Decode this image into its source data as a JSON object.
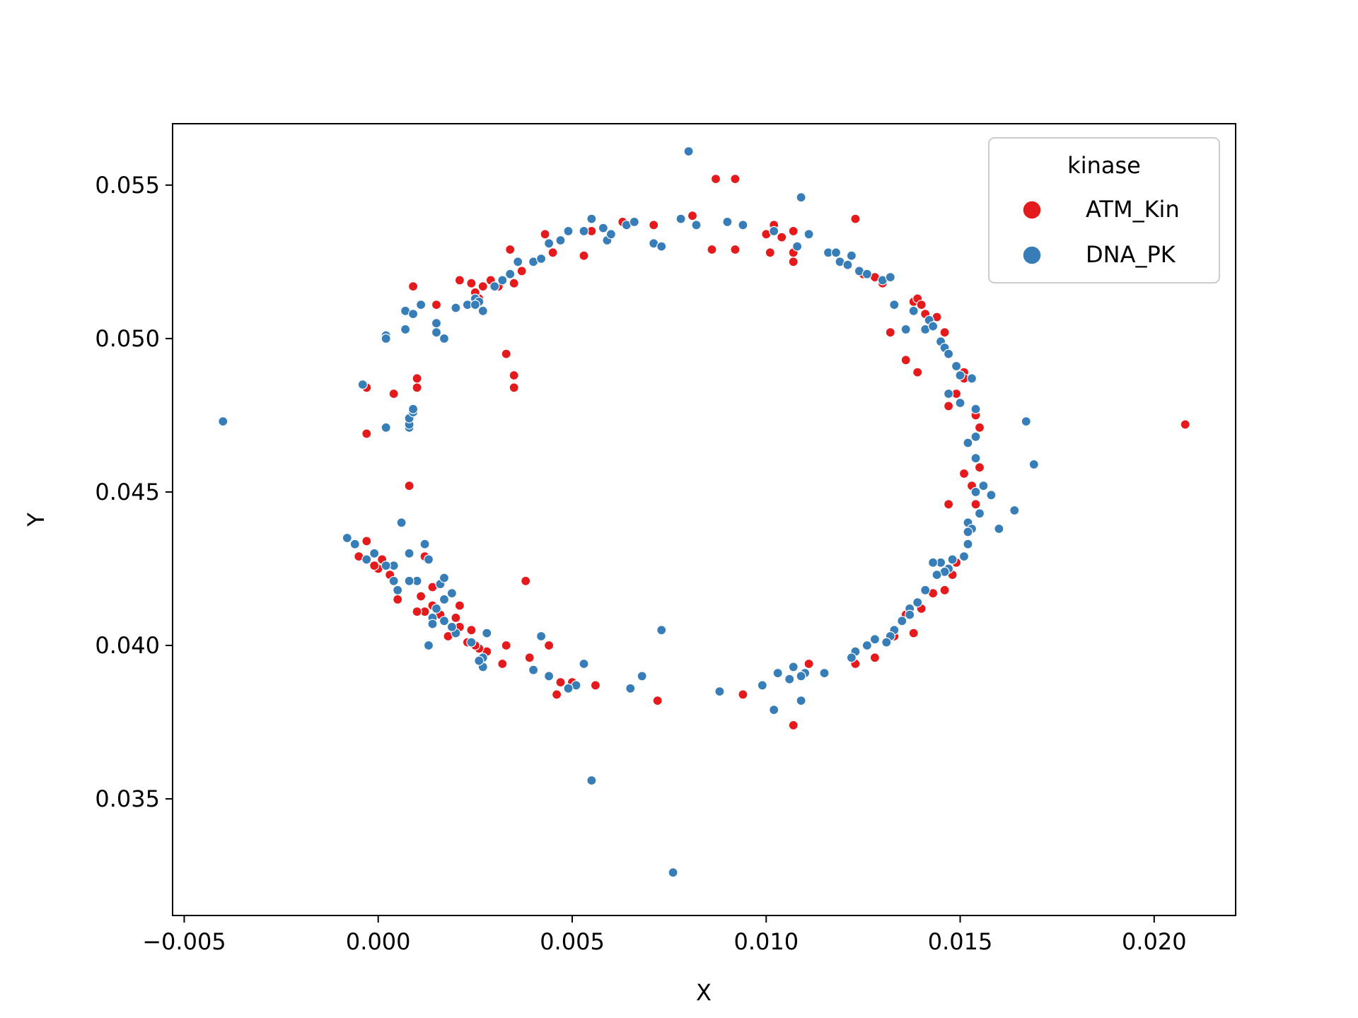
{
  "chart_data": {
    "type": "scatter",
    "title": "",
    "xlabel": "X",
    "ylabel": "Y",
    "xlim": [
      -0.0053,
      0.0221
    ],
    "ylim": [
      0.0312,
      0.057
    ],
    "xticks": [
      "−0.005",
      "0.000",
      "0.005",
      "0.010",
      "0.015",
      "0.020"
    ],
    "xtick_values": [
      -0.005,
      0.0,
      0.005,
      0.01,
      0.015,
      0.02
    ],
    "yticks": [
      "0.035",
      "0.040",
      "0.045",
      "0.050",
      "0.055"
    ],
    "ytick_values": [
      0.035,
      0.04,
      0.045,
      0.05,
      0.055
    ],
    "grid": false,
    "legend": {
      "title": "kinase",
      "placement": "top-right"
    },
    "series": [
      {
        "name": "ATM_Kin",
        "color": "#e41a1c",
        "points": [
          [
            -0.0003,
            0.0484
          ],
          [
            -0.0003,
            0.0469
          ],
          [
            0.0004,
            0.0482
          ],
          [
            0.0009,
            0.0517
          ],
          [
            0.001,
            0.0487
          ],
          [
            0.001,
            0.0484
          ],
          [
            0.0008,
            0.0452
          ],
          [
            0.0015,
            0.0511
          ],
          [
            0.0021,
            0.0519
          ],
          [
            0.0024,
            0.0518
          ],
          [
            0.0027,
            0.0517
          ],
          [
            0.0029,
            0.0519
          ],
          [
            0.0031,
            0.0517
          ],
          [
            0.0032,
            0.0519
          ],
          [
            0.0026,
            0.0513
          ],
          [
            0.0025,
            0.0515
          ],
          [
            0.0035,
            0.0518
          ],
          [
            0.0034,
            0.0529
          ],
          [
            0.0037,
            0.0522
          ],
          [
            0.0043,
            0.0534
          ],
          [
            0.0045,
            0.0528
          ],
          [
            0.0053,
            0.0527
          ],
          [
            0.0055,
            0.0535
          ],
          [
            0.0063,
            0.0538
          ],
          [
            0.0071,
            0.0537
          ],
          [
            0.0081,
            0.054
          ],
          [
            0.0087,
            0.0552
          ],
          [
            0.0092,
            0.0552
          ],
          [
            0.0086,
            0.0529
          ],
          [
            0.0092,
            0.0529
          ],
          [
            0.01,
            0.0534
          ],
          [
            0.0102,
            0.0537
          ],
          [
            0.0104,
            0.0533
          ],
          [
            0.0107,
            0.0535
          ],
          [
            0.0107,
            0.0528
          ],
          [
            0.0101,
            0.0528
          ],
          [
            0.0107,
            0.0525
          ],
          [
            0.0123,
            0.0539
          ],
          [
            0.0125,
            0.0521
          ],
          [
            0.0128,
            0.052
          ],
          [
            0.013,
            0.0518
          ],
          [
            0.0132,
            0.0502
          ],
          [
            0.0138,
            0.0512
          ],
          [
            0.0139,
            0.0513
          ],
          [
            0.014,
            0.0511
          ],
          [
            0.0141,
            0.0508
          ],
          [
            0.0144,
            0.0507
          ],
          [
            0.0146,
            0.0502
          ],
          [
            0.0136,
            0.0493
          ],
          [
            0.0139,
            0.0489
          ],
          [
            0.0147,
            0.0478
          ],
          [
            0.0149,
            0.0482
          ],
          [
            0.0151,
            0.0489
          ],
          [
            0.0151,
            0.0487
          ],
          [
            0.0154,
            0.0475
          ],
          [
            0.0155,
            0.0471
          ],
          [
            0.0151,
            0.0456
          ],
          [
            0.0153,
            0.0452
          ],
          [
            0.0155,
            0.0458
          ],
          [
            0.0154,
            0.0446
          ],
          [
            0.0147,
            0.0446
          ],
          [
            0.0149,
            0.0427
          ],
          [
            0.0148,
            0.0423
          ],
          [
            0.0146,
            0.0418
          ],
          [
            0.0143,
            0.0417
          ],
          [
            0.014,
            0.0412
          ],
          [
            0.0136,
            0.041
          ],
          [
            0.0138,
            0.0404
          ],
          [
            0.0133,
            0.0403
          ],
          [
            0.0128,
            0.0396
          ],
          [
            0.0123,
            0.0394
          ],
          [
            0.0111,
            0.0394
          ],
          [
            0.0107,
            0.0374
          ],
          [
            0.0094,
            0.0384
          ],
          [
            0.0072,
            0.0382
          ],
          [
            0.0056,
            0.0387
          ],
          [
            0.005,
            0.0388
          ],
          [
            0.0046,
            0.0384
          ],
          [
            0.0047,
            0.0388
          ],
          [
            0.0044,
            0.04
          ],
          [
            0.0039,
            0.0396
          ],
          [
            0.0038,
            0.0421
          ],
          [
            0.0032,
            0.0394
          ],
          [
            0.0033,
            0.04
          ],
          [
            0.0028,
            0.0398
          ],
          [
            0.0026,
            0.0399
          ],
          [
            0.0025,
            0.04
          ],
          [
            0.0023,
            0.0401
          ],
          [
            0.0024,
            0.0405
          ],
          [
            0.0021,
            0.0406
          ],
          [
            0.002,
            0.0409
          ],
          [
            0.0021,
            0.0413
          ],
          [
            0.0018,
            0.0403
          ],
          [
            0.0016,
            0.041
          ],
          [
            0.0014,
            0.0413
          ],
          [
            0.0012,
            0.0411
          ],
          [
            0.001,
            0.0411
          ],
          [
            0.0011,
            0.0416
          ],
          [
            0.0014,
            0.0419
          ],
          [
            0.0012,
            0.0429
          ],
          [
            0.0005,
            0.0415
          ],
          [
            0.0003,
            0.0423
          ],
          [
            0.0001,
            0.0428
          ],
          [
            0.0,
            0.0425
          ],
          [
            -0.0001,
            0.0426
          ],
          [
            -0.0005,
            0.0429
          ],
          [
            -0.0003,
            0.0434
          ],
          [
            0.0033,
            0.0495
          ],
          [
            0.0035,
            0.0488
          ],
          [
            0.0035,
            0.0484
          ],
          [
            0.0208,
            0.0472
          ]
        ]
      },
      {
        "name": "DNA_PK",
        "color": "#377eb8",
        "points": [
          [
            -0.004,
            0.0473
          ],
          [
            -0.0004,
            0.0485
          ],
          [
            0.0002,
            0.0501
          ],
          [
            0.0002,
            0.05
          ],
          [
            0.0007,
            0.0503
          ],
          [
            0.0007,
            0.0509
          ],
          [
            0.0009,
            0.0508
          ],
          [
            0.0011,
            0.0511
          ],
          [
            0.0015,
            0.0505
          ],
          [
            0.0015,
            0.0502
          ],
          [
            0.0017,
            0.05
          ],
          [
            0.002,
            0.051
          ],
          [
            0.0023,
            0.0511
          ],
          [
            0.0025,
            0.0513
          ],
          [
            0.0026,
            0.0512
          ],
          [
            0.0027,
            0.0509
          ],
          [
            0.0025,
            0.0511
          ],
          [
            0.003,
            0.0517
          ],
          [
            0.0032,
            0.0519
          ],
          [
            0.0034,
            0.0521
          ],
          [
            0.0036,
            0.0525
          ],
          [
            0.004,
            0.0525
          ],
          [
            0.0042,
            0.0526
          ],
          [
            0.0044,
            0.0531
          ],
          [
            0.0047,
            0.0532
          ],
          [
            0.0049,
            0.0535
          ],
          [
            0.0053,
            0.0535
          ],
          [
            0.0055,
            0.0539
          ],
          [
            0.0058,
            0.0536
          ],
          [
            0.0059,
            0.0532
          ],
          [
            0.006,
            0.0534
          ],
          [
            0.0064,
            0.0537
          ],
          [
            0.0066,
            0.0538
          ],
          [
            0.0071,
            0.0531
          ],
          [
            0.0073,
            0.053
          ],
          [
            0.0078,
            0.0539
          ],
          [
            0.008,
            0.0561
          ],
          [
            0.0082,
            0.0537
          ],
          [
            0.009,
            0.0538
          ],
          [
            0.0094,
            0.0537
          ],
          [
            0.0102,
            0.0535
          ],
          [
            0.0109,
            0.0546
          ],
          [
            0.0108,
            0.053
          ],
          [
            0.0111,
            0.0534
          ],
          [
            0.0116,
            0.0528
          ],
          [
            0.0118,
            0.0528
          ],
          [
            0.0119,
            0.0525
          ],
          [
            0.0121,
            0.0524
          ],
          [
            0.0122,
            0.0527
          ],
          [
            0.0124,
            0.0522
          ],
          [
            0.0126,
            0.0521
          ],
          [
            0.013,
            0.0519
          ],
          [
            0.0132,
            0.052
          ],
          [
            0.0133,
            0.0511
          ],
          [
            0.0136,
            0.0503
          ],
          [
            0.0138,
            0.0509
          ],
          [
            0.0141,
            0.0503
          ],
          [
            0.0142,
            0.0506
          ],
          [
            0.0143,
            0.0504
          ],
          [
            0.0145,
            0.0499
          ],
          [
            0.0146,
            0.0497
          ],
          [
            0.0147,
            0.0495
          ],
          [
            0.0149,
            0.0491
          ],
          [
            0.015,
            0.0488
          ],
          [
            0.0153,
            0.0487
          ],
          [
            0.0147,
            0.0482
          ],
          [
            0.015,
            0.0479
          ],
          [
            0.0154,
            0.0477
          ],
          [
            0.0154,
            0.0468
          ],
          [
            0.0152,
            0.0466
          ],
          [
            0.0154,
            0.0461
          ],
          [
            0.0156,
            0.0452
          ],
          [
            0.0154,
            0.045
          ],
          [
            0.0158,
            0.0449
          ],
          [
            0.0155,
            0.0443
          ],
          [
            0.0152,
            0.044
          ],
          [
            0.0153,
            0.0438
          ],
          [
            0.0152,
            0.0437
          ],
          [
            0.016,
            0.0438
          ],
          [
            0.0164,
            0.0444
          ],
          [
            0.0167,
            0.0473
          ],
          [
            0.0169,
            0.0459
          ],
          [
            0.0152,
            0.0433
          ],
          [
            0.0151,
            0.0429
          ],
          [
            0.0148,
            0.0428
          ],
          [
            0.0145,
            0.0427
          ],
          [
            0.0143,
            0.0427
          ],
          [
            0.0147,
            0.0425
          ],
          [
            0.0146,
            0.0424
          ],
          [
            0.0144,
            0.0423
          ],
          [
            0.0141,
            0.0418
          ],
          [
            0.0139,
            0.0414
          ],
          [
            0.0137,
            0.0412
          ],
          [
            0.0137,
            0.041
          ],
          [
            0.0135,
            0.0408
          ],
          [
            0.0133,
            0.0405
          ],
          [
            0.0132,
            0.0403
          ],
          [
            0.0131,
            0.0401
          ],
          [
            0.0128,
            0.0402
          ],
          [
            0.0126,
            0.04
          ],
          [
            0.0123,
            0.0398
          ],
          [
            0.0122,
            0.0396
          ],
          [
            0.0115,
            0.0391
          ],
          [
            0.011,
            0.0391
          ],
          [
            0.0109,
            0.039
          ],
          [
            0.0107,
            0.0393
          ],
          [
            0.0106,
            0.0389
          ],
          [
            0.0103,
            0.0391
          ],
          [
            0.0099,
            0.0387
          ],
          [
            0.0109,
            0.0382
          ],
          [
            0.0102,
            0.0379
          ],
          [
            0.0088,
            0.0385
          ],
          [
            0.0073,
            0.0405
          ],
          [
            0.0068,
            0.039
          ],
          [
            0.0065,
            0.0386
          ],
          [
            0.0055,
            0.0356
          ],
          [
            0.0053,
            0.0394
          ],
          [
            0.0051,
            0.0387
          ],
          [
            0.0049,
            0.0386
          ],
          [
            0.0044,
            0.039
          ],
          [
            0.0042,
            0.0403
          ],
          [
            0.004,
            0.0392
          ],
          [
            0.0028,
            0.0404
          ],
          [
            0.0027,
            0.0396
          ],
          [
            0.0027,
            0.0393
          ],
          [
            0.0026,
            0.0395
          ],
          [
            0.0024,
            0.0401
          ],
          [
            0.002,
            0.0404
          ],
          [
            0.0019,
            0.0406
          ],
          [
            0.0017,
            0.0408
          ],
          [
            0.0014,
            0.0409
          ],
          [
            0.0013,
            0.04
          ],
          [
            0.0014,
            0.0407
          ],
          [
            0.0015,
            0.0412
          ],
          [
            0.0017,
            0.0415
          ],
          [
            0.0019,
            0.0417
          ],
          [
            0.0016,
            0.042
          ],
          [
            0.0017,
            0.0422
          ],
          [
            0.0013,
            0.0428
          ],
          [
            0.0012,
            0.0433
          ],
          [
            0.001,
            0.0421
          ],
          [
            0.0008,
            0.0421
          ],
          [
            0.0008,
            0.043
          ],
          [
            0.0006,
            0.044
          ],
          [
            0.0005,
            0.0418
          ],
          [
            0.0004,
            0.0421
          ],
          [
            0.0004,
            0.0426
          ],
          [
            0.0002,
            0.0426
          ],
          [
            -0.0001,
            0.043
          ],
          [
            -0.0003,
            0.0428
          ],
          [
            -0.0006,
            0.0433
          ],
          [
            -0.0008,
            0.0435
          ],
          [
            0.0002,
            0.0471
          ],
          [
            0.0008,
            0.0471
          ],
          [
            0.0008,
            0.0472
          ],
          [
            0.0008,
            0.0474
          ],
          [
            0.0009,
            0.0476
          ],
          [
            0.0009,
            0.0477
          ],
          [
            0.0076,
            0.0326
          ]
        ]
      }
    ]
  }
}
